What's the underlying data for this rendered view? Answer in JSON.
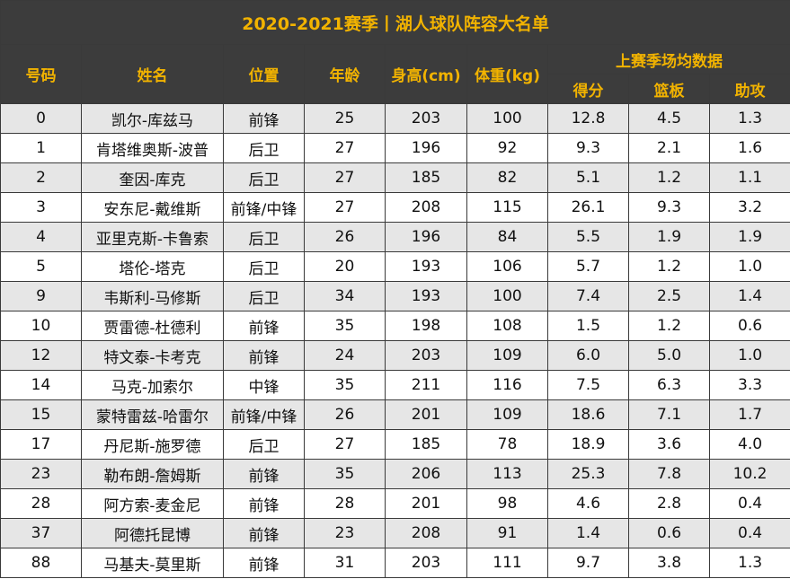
{
  "title": "2020-2021赛季丨湖人球队阵容大名单",
  "headers": {
    "number": "号码",
    "name": "姓名",
    "position": "位置",
    "age": "年龄",
    "height": "身高(cm)",
    "weight": "体重(kg)",
    "stats_group": "上赛季场均数据",
    "points": "得分",
    "rebounds": "篮板",
    "assists": "助攻"
  },
  "rows": [
    {
      "number": "0",
      "name": "凯尔-库兹马",
      "position": "前锋",
      "age": "25",
      "height": "203",
      "weight": "100",
      "points": "12.8",
      "rebounds": "4.5",
      "assists": "1.3"
    },
    {
      "number": "1",
      "name": "肯塔维奥斯-波普",
      "position": "后卫",
      "age": "27",
      "height": "196",
      "weight": "92",
      "points": "9.3",
      "rebounds": "2.1",
      "assists": "1.6"
    },
    {
      "number": "2",
      "name": "奎因-库克",
      "position": "后卫",
      "age": "27",
      "height": "185",
      "weight": "82",
      "points": "5.1",
      "rebounds": "1.2",
      "assists": "1.1"
    },
    {
      "number": "3",
      "name": "安东尼-戴维斯",
      "position": "前锋/中锋",
      "age": "27",
      "height": "208",
      "weight": "115",
      "points": "26.1",
      "rebounds": "9.3",
      "assists": "3.2"
    },
    {
      "number": "4",
      "name": "亚里克斯-卡鲁索",
      "position": "后卫",
      "age": "26",
      "height": "196",
      "weight": "84",
      "points": "5.5",
      "rebounds": "1.9",
      "assists": "1.9"
    },
    {
      "number": "5",
      "name": "塔伦-塔克",
      "position": "后卫",
      "age": "20",
      "height": "193",
      "weight": "106",
      "points": "5.7",
      "rebounds": "1.2",
      "assists": "1.0"
    },
    {
      "number": "9",
      "name": "韦斯利-马修斯",
      "position": "后卫",
      "age": "34",
      "height": "193",
      "weight": "100",
      "points": "7.4",
      "rebounds": "2.5",
      "assists": "1.4"
    },
    {
      "number": "10",
      "name": "贾雷德-杜德利",
      "position": "前锋",
      "age": "35",
      "height": "198",
      "weight": "108",
      "points": "1.5",
      "rebounds": "1.2",
      "assists": "0.6"
    },
    {
      "number": "12",
      "name": "特文泰-卡考克",
      "position": "前锋",
      "age": "24",
      "height": "203",
      "weight": "109",
      "points": "6.0",
      "rebounds": "5.0",
      "assists": "1.0"
    },
    {
      "number": "14",
      "name": "马克-加索尔",
      "position": "中锋",
      "age": "35",
      "height": "211",
      "weight": "116",
      "points": "7.5",
      "rebounds": "6.3",
      "assists": "3.3"
    },
    {
      "number": "15",
      "name": "蒙特雷兹-哈雷尔",
      "position": "前锋/中锋",
      "age": "26",
      "height": "201",
      "weight": "109",
      "points": "18.6",
      "rebounds": "7.1",
      "assists": "1.7"
    },
    {
      "number": "17",
      "name": "丹尼斯-施罗德",
      "position": "后卫",
      "age": "27",
      "height": "185",
      "weight": "78",
      "points": "18.9",
      "rebounds": "3.6",
      "assists": "4.0"
    },
    {
      "number": "23",
      "name": "勒布朗-詹姆斯",
      "position": "前锋",
      "age": "35",
      "height": "206",
      "weight": "113",
      "points": "25.3",
      "rebounds": "7.8",
      "assists": "10.2"
    },
    {
      "number": "28",
      "name": "阿方索-麦金尼",
      "position": "前锋",
      "age": "28",
      "height": "201",
      "weight": "98",
      "points": "4.6",
      "rebounds": "2.8",
      "assists": "0.4"
    },
    {
      "number": "37",
      "name": "阿德托昆博",
      "position": "前锋",
      "age": "23",
      "height": "208",
      "weight": "91",
      "points": "1.4",
      "rebounds": "0.6",
      "assists": "0.4"
    },
    {
      "number": "88",
      "name": "马基夫-莫里斯",
      "position": "前锋",
      "age": "31",
      "height": "203",
      "weight": "111",
      "points": "9.7",
      "rebounds": "3.8",
      "assists": "1.3"
    }
  ],
  "colors": {
    "header_bg": "#3c3c3c",
    "header_text": "#f2b300",
    "row_alt_bg": "#e6e6e6",
    "row_plain_bg": "#ffffff",
    "border": "#3a3a3a"
  }
}
